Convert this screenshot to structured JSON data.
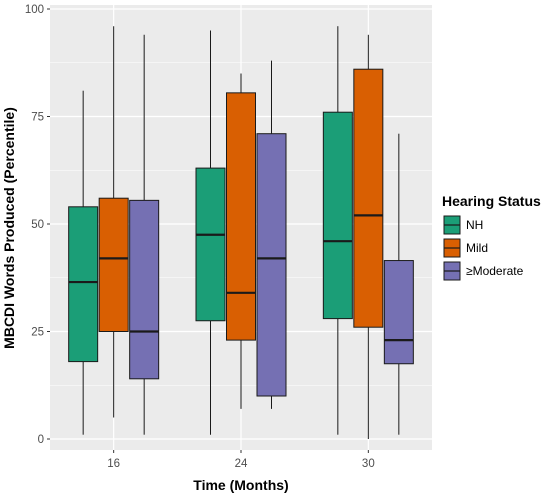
{
  "chart_data": {
    "type": "boxplot",
    "xlabel": "Time (Months)",
    "ylabel": "MBCDI Words Produced (Percentile)",
    "ylim": [
      0,
      100
    ],
    "yticks": [
      "0",
      "25",
      "50",
      "75",
      "100"
    ],
    "categories": [
      "16",
      "24",
      "30"
    ],
    "legend_title": "Hearing Status",
    "legend_position": "right",
    "grid": true,
    "colors": {
      "panel": "#ebebeb",
      "grid": "#ffffff",
      "box_outline": "#1a1a1a"
    },
    "series": [
      {
        "name": "NH",
        "color": "#1b9e77",
        "boxes": [
          {
            "min": 1,
            "q1": 18,
            "median": 36.5,
            "q3": 54,
            "max": 81
          },
          {
            "min": 1,
            "q1": 27.5,
            "median": 47.5,
            "q3": 63,
            "max": 95
          },
          {
            "min": 1,
            "q1": 28,
            "median": 46,
            "q3": 76,
            "max": 96
          }
        ]
      },
      {
        "name": "Mild",
        "color": "#d95f02",
        "boxes": [
          {
            "min": 5,
            "q1": 25,
            "median": 42,
            "q3": 56,
            "max": 96
          },
          {
            "min": 7,
            "q1": 23,
            "median": 34,
            "q3": 80.5,
            "max": 85
          },
          {
            "min": 0,
            "q1": 26,
            "median": 52,
            "q3": 86,
            "max": 94
          }
        ]
      },
      {
        "name": "≥Moderate",
        "color": "#7570b3",
        "boxes": [
          {
            "min": 1,
            "q1": 14,
            "median": 25,
            "q3": 55.5,
            "max": 94
          },
          {
            "min": 7,
            "q1": 10,
            "median": 42,
            "q3": 71,
            "max": 88
          },
          {
            "min": 1,
            "q1": 17.5,
            "median": 23,
            "q3": 41.5,
            "max": 71
          }
        ]
      }
    ]
  }
}
